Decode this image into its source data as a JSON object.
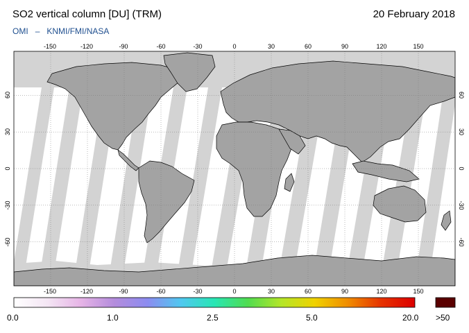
{
  "header": {
    "title": "SO2 vertical column [DU] (TRM)",
    "date": "20 February 2018",
    "credit_left": "OMI",
    "credit_sep": "–",
    "credit_right": "KNMI/FMI/NASA"
  },
  "map": {
    "lon_ticks": [
      "-150",
      "-120",
      "-90",
      "-60",
      "-30",
      "0",
      "30",
      "60",
      "90",
      "120",
      "150"
    ],
    "lat_ticks": [
      "60",
      "30",
      "0",
      "-30",
      "-60"
    ],
    "colors": {
      "no_data": "#d3d3d3",
      "land_no_data": "#a3a3a3",
      "ocean_data": "#ffffff",
      "coastline": "#000000",
      "grid": "#777777"
    }
  },
  "colorbar": {
    "labels": [
      "0.0",
      "1.0",
      "2.5",
      "5.0",
      "20.0"
    ],
    "overflow_label": ">50",
    "overflow_color": "#5a0000",
    "gradient": [
      "#ffffff",
      "#f4e6f4",
      "#e6b4e6",
      "#b48cdc",
      "#8c8cf0",
      "#50c8f0",
      "#28e6b4",
      "#50dc50",
      "#b4e628",
      "#f0d200",
      "#f08c00",
      "#e63200",
      "#dc0000"
    ]
  }
}
